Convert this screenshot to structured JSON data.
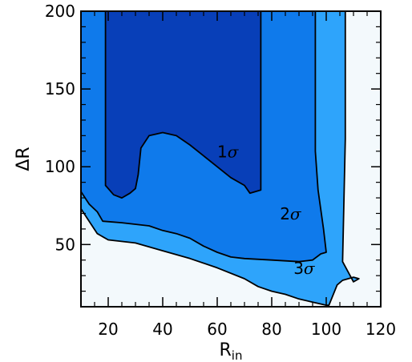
{
  "chart_data": {
    "type": "contour",
    "title": "",
    "xlabel": "R",
    "xlabel_subscript": "in",
    "ylabel": "ΔR",
    "xlim": [
      10,
      120
    ],
    "ylim": [
      10,
      200
    ],
    "xticks": [
      20,
      40,
      60,
      80,
      100,
      120
    ],
    "yticks": [
      50,
      100,
      150,
      200
    ],
    "background_color": "#f3f9fc",
    "levels": [
      {
        "name": "3σ",
        "label_num": "3",
        "color": "#2ea4fb",
        "label_pos": [
          88,
          31
        ],
        "boundary": [
          [
            10,
            73
          ],
          [
            13,
            65
          ],
          [
            16,
            57
          ],
          [
            20,
            53
          ],
          [
            30,
            51
          ],
          [
            40,
            46
          ],
          [
            50,
            41
          ],
          [
            60,
            35
          ],
          [
            70,
            28
          ],
          [
            75,
            23
          ],
          [
            80,
            20
          ],
          [
            85,
            18
          ],
          [
            90,
            15
          ],
          [
            95,
            13
          ],
          [
            100,
            11
          ],
          [
            101,
            11
          ],
          [
            104,
            24
          ],
          [
            106,
            27
          ],
          [
            110,
            29
          ],
          [
            112,
            28
          ],
          [
            110,
            26
          ],
          [
            106,
            39
          ],
          [
            107,
            118
          ],
          [
            107,
            200
          ],
          [
            10,
            200
          ]
        ]
      },
      {
        "name": "2σ",
        "label_num": "2",
        "color": "#0f7aeb",
        "label_pos": [
          83,
          66
        ],
        "boundary": [
          [
            10,
            84
          ],
          [
            13,
            76
          ],
          [
            16,
            71
          ],
          [
            18,
            65
          ],
          [
            25,
            64
          ],
          [
            35,
            62
          ],
          [
            40,
            59
          ],
          [
            45,
            57
          ],
          [
            50,
            54
          ],
          [
            55,
            49
          ],
          [
            60,
            45
          ],
          [
            65,
            42
          ],
          [
            70,
            41
          ],
          [
            80,
            40
          ],
          [
            90,
            39
          ],
          [
            95,
            40
          ],
          [
            98,
            44
          ],
          [
            100,
            45
          ],
          [
            99,
            60
          ],
          [
            97,
            85
          ],
          [
            96,
            110
          ],
          [
            96,
            200
          ],
          [
            10,
            200
          ]
        ]
      },
      {
        "name": "1σ",
        "label_num": "1",
        "color": "#083fb8",
        "label_pos": [
          60,
          106
        ],
        "boundary": [
          [
            19,
            200
          ],
          [
            19,
            88
          ],
          [
            22,
            82
          ],
          [
            25,
            80
          ],
          [
            28,
            83
          ],
          [
            30,
            86
          ],
          [
            31,
            95
          ],
          [
            32,
            112
          ],
          [
            35,
            120
          ],
          [
            40,
            122
          ],
          [
            45,
            120
          ],
          [
            50,
            114
          ],
          [
            55,
            107
          ],
          [
            60,
            100
          ],
          [
            65,
            93
          ],
          [
            70,
            88
          ],
          [
            72,
            83
          ],
          [
            76,
            85
          ],
          [
            76,
            120
          ],
          [
            76,
            200
          ]
        ]
      }
    ]
  }
}
